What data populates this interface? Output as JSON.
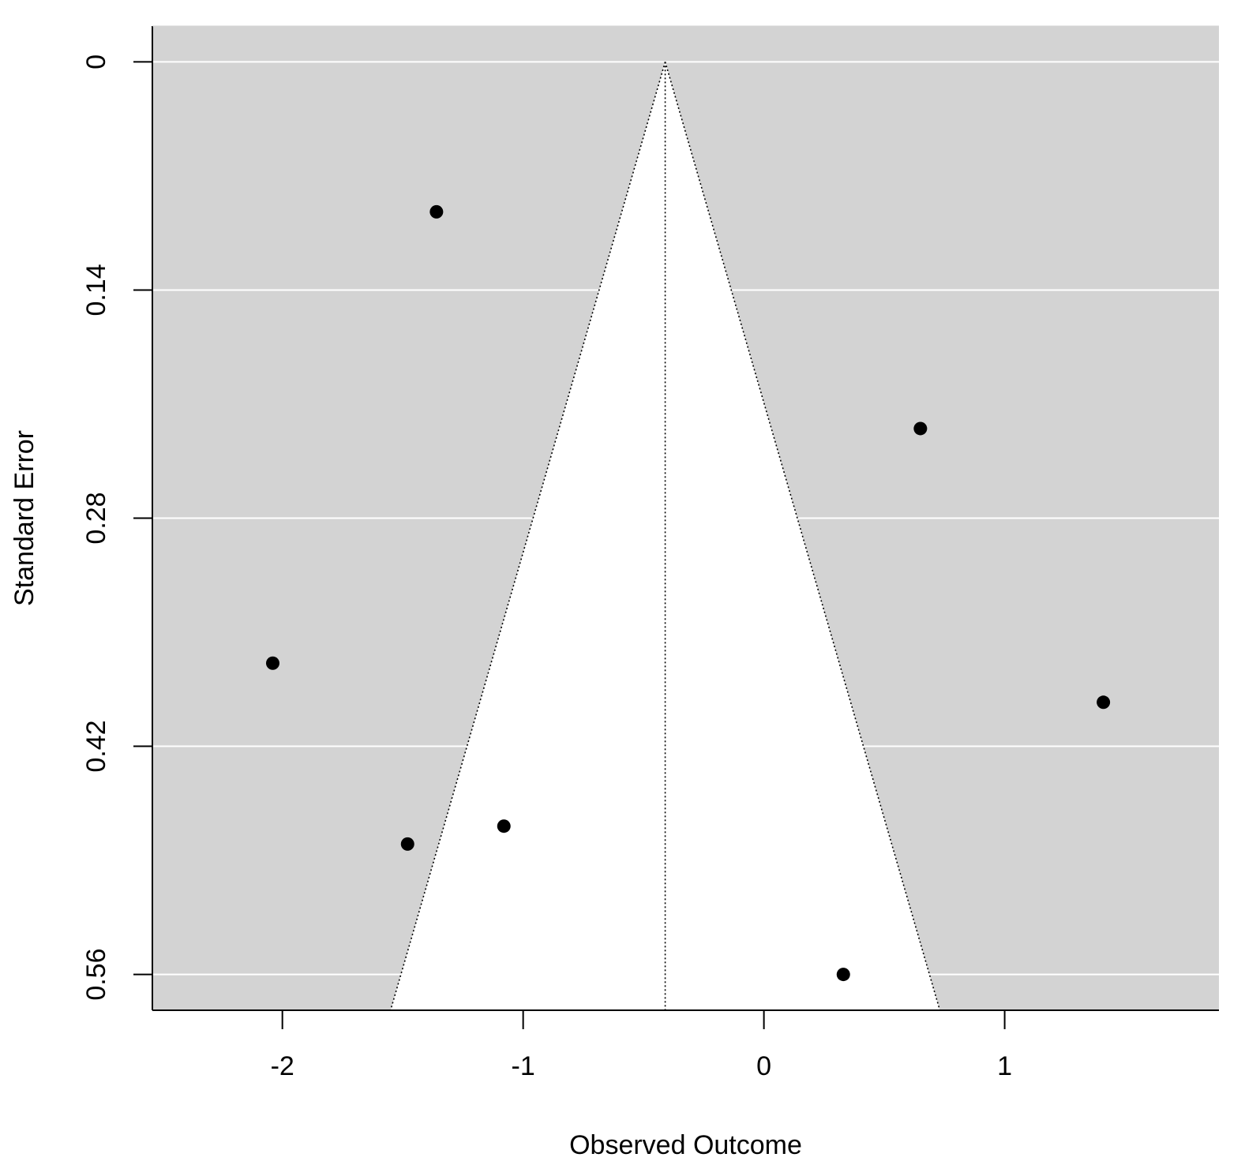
{
  "chart_data": {
    "type": "scatter",
    "subtype": "funnel plot",
    "title": "",
    "xlabel": "Observed Outcome",
    "ylabel": "Standard Error",
    "xlim": [
      -2.54,
      1.89
    ],
    "ylim": [
      0.582,
      -0.022
    ],
    "y_reversed": true,
    "x_ticks": [
      -2,
      -1,
      0,
      1
    ],
    "x_tick_labels": [
      "-2",
      "-1",
      "0",
      "1"
    ],
    "y_ticks": [
      0,
      0.14,
      0.28,
      0.42,
      0.56
    ],
    "y_tick_labels": [
      "0",
      "0.14",
      "0.28",
      "0.42",
      "0.56"
    ],
    "grid": "horizontal",
    "pooled_estimate": -0.41,
    "ci_multiplier": 1.96,
    "funnel_se_max": 0.582,
    "points": [
      {
        "x": -1.36,
        "y": 0.092
      },
      {
        "x": 0.65,
        "y": 0.225
      },
      {
        "x": -2.04,
        "y": 0.369
      },
      {
        "x": 1.41,
        "y": 0.393
      },
      {
        "x": -1.08,
        "y": 0.469
      },
      {
        "x": -1.48,
        "y": 0.48
      },
      {
        "x": 0.33,
        "y": 0.56
      }
    ],
    "colors": {
      "panel_background": "#d3d3d3",
      "funnel_fill": "#ffffff",
      "grid": "#ffffff",
      "points": "#000000",
      "lines": "#000000"
    }
  }
}
